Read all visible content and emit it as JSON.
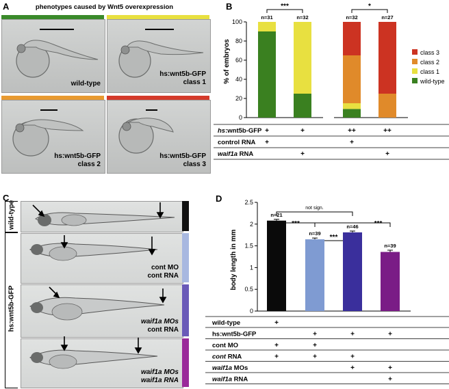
{
  "panel_a": {
    "letter": "A",
    "title": "phenotypes caused by Wnt5 overexpression",
    "images": [
      {
        "label": "wild-type",
        "label2": "",
        "bar_color": "#3a8a2a"
      },
      {
        "label": "hs:wnt5b-GFP",
        "label2": "class 1",
        "bar_color": "#e8e040"
      },
      {
        "label": "hs:wnt5b-GFP",
        "label2": "class 2",
        "bar_color": "#e89a30"
      },
      {
        "label": "hs:wnt5b-GFP",
        "label2": "class 3",
        "bar_color": "#d43a2a"
      }
    ]
  },
  "panel_b": {
    "letter": "B",
    "ylabel": "% of embryos",
    "legend": [
      "class 3",
      "class 2",
      "class 1",
      "wild-type"
    ],
    "colors": {
      "class 3": "#cc3322",
      "class 2": "#e08a2a",
      "class 1": "#e8e040",
      "wild-type": "#3a8020"
    },
    "n_labels": [
      "n=31",
      "n=32",
      "n=32",
      "n=27"
    ],
    "sig": [
      "***",
      "*"
    ],
    "row_labels": [
      "hs:wnt5b-GFP",
      "control RNA",
      "waif1a RNA"
    ],
    "rows": [
      [
        "+",
        "+",
        "++",
        "++"
      ],
      [
        "+",
        "",
        "+",
        ""
      ],
      [
        "",
        "+",
        "",
        "+"
      ]
    ]
  },
  "panel_c": {
    "letter": "C",
    "side_labels": [
      "wild-type",
      "hs:wnt5b-GFP"
    ],
    "images": [
      {
        "line1": "",
        "line2": "",
        "color": "#111111"
      },
      {
        "line1": "cont MO",
        "line2": "cont RNA",
        "color": "#a8b8e0"
      },
      {
        "line1": "waif1a MOs",
        "line2": "cont RNA",
        "color": "#6a5ab8"
      },
      {
        "line1": "waif1a MOs",
        "line2": "waif1a RNA",
        "color": "#9a2a9a"
      }
    ]
  },
  "panel_d": {
    "letter": "D",
    "ylabel": "body length in mm",
    "n_labels": [
      "n=21",
      "n=39",
      "n=46",
      "n=39"
    ],
    "sig_top": "not sign.",
    "sig": [
      "***",
      "***",
      "***"
    ],
    "row_labels": [
      "wild-type",
      "hs:wnt5b-GFP",
      "cont MO",
      "cont RNA",
      "waif1a MOs",
      "waif1a RNA"
    ],
    "rows": [
      [
        "+",
        "",
        "",
        ""
      ],
      [
        "",
        "+",
        "+",
        "+"
      ],
      [
        "+",
        "+",
        "",
        ""
      ],
      [
        "+",
        "+",
        "+",
        ""
      ],
      [
        "",
        "",
        "+",
        "+"
      ],
      [
        "",
        "",
        "",
        "+"
      ]
    ]
  },
  "chart_data": [
    {
      "type": "bar",
      "stacked": true,
      "ylabel": "% of embryos",
      "ylim": [
        0,
        100
      ],
      "yticks": [
        0,
        20,
        40,
        60,
        80,
        100
      ],
      "categories": [
        "1",
        "2",
        "3",
        "4"
      ],
      "series": [
        {
          "name": "wild-type",
          "values": [
            90,
            25,
            9,
            0
          ]
        },
        {
          "name": "class 1",
          "values": [
            10,
            75,
            6,
            0
          ]
        },
        {
          "name": "class 2",
          "values": [
            0,
            0,
            50,
            25
          ]
        },
        {
          "name": "class 3",
          "values": [
            0,
            0,
            35,
            75
          ]
        }
      ],
      "legend": "right"
    },
    {
      "type": "bar",
      "ylabel": "body length in mm",
      "ylim": [
        0,
        2.5
      ],
      "yticks": [
        0,
        0.5,
        1,
        1.5,
        2,
        2.5
      ],
      "categories": [
        "1",
        "2",
        "3",
        "4"
      ],
      "values": [
        2.08,
        1.65,
        1.81,
        1.36
      ],
      "errors": [
        0.03,
        0.03,
        0.03,
        0.04
      ],
      "colors": [
        "#0a0a0a",
        "#7f9bd2",
        "#3a2f9c",
        "#7a1c86"
      ]
    }
  ]
}
